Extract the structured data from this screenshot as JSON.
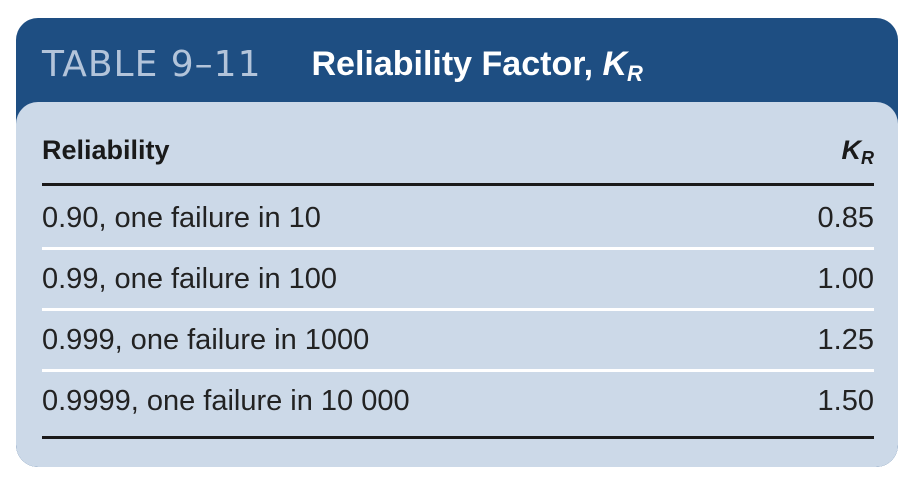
{
  "table": {
    "number": "TABLE 9–11",
    "title_text": "Reliability Factor, ",
    "title_symbol": "K",
    "title_subscript": "R",
    "columns": {
      "reliability": "Reliability",
      "kr_symbol": "K",
      "kr_subscript": "R"
    },
    "rows": [
      {
        "reliability": "0.90, one failure in 10",
        "kr": "0.85"
      },
      {
        "reliability": "0.99, one failure in 100",
        "kr": "1.00"
      },
      {
        "reliability": "0.999, one failure in 1000",
        "kr": "1.25"
      },
      {
        "reliability": "0.9999, one failure in 10 000",
        "kr": "1.50"
      }
    ]
  },
  "colors": {
    "header_band": "#1e4e82",
    "panel": "#ccd9e8",
    "table_number": "#b3c4da"
  }
}
